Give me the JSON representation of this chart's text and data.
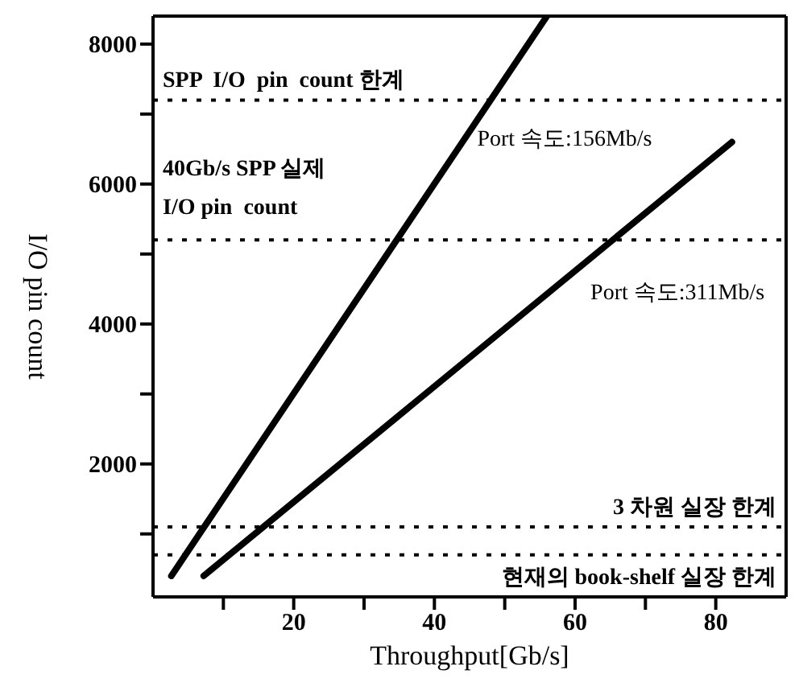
{
  "chart_data": {
    "type": "line",
    "xlabel": "Throughput[Gb/s]",
    "ylabel": "I/O pin count",
    "xlim": [
      0,
      90
    ],
    "xticks": [
      {
        "value": 10,
        "label": null
      },
      20,
      {
        "value": 30,
        "label": null
      },
      40,
      {
        "value": 50,
        "label": null
      },
      60,
      {
        "value": 70,
        "label": null
      },
      80
    ],
    "ylim": [
      100,
      8400
    ],
    "yticks": [
      {
        "value": 1000,
        "label": null
      },
      2000,
      {
        "value": 3000,
        "label": null
      },
      4000,
      {
        "value": 5000,
        "label": null
      },
      6000,
      {
        "value": 7000,
        "label": null
      },
      8000
    ],
    "series": [
      {
        "name": "Port 속도:156Mb/s",
        "color": "#000000",
        "x": [
          2.6,
          56
        ],
        "values": [
          400,
          8400
        ]
      },
      {
        "name": "Port 속도:311Mb/s",
        "color": "#000000",
        "x": [
          7.2,
          82.3
        ],
        "values": [
          400,
          6600
        ]
      }
    ],
    "ref_lines": [
      {
        "axis": "y",
        "value": 7200,
        "label": "SPP  I/O  pin  count 한계",
        "color": "#000000",
        "line_style": "dotted"
      },
      {
        "axis": "y",
        "value": 5200,
        "label": "40Gb/s SPP 실제\nI/O pin  count",
        "color": "#000000",
        "line_style": "dotted"
      },
      {
        "axis": "y",
        "value": 1100,
        "label": "3 차원 실장 한계",
        "color": "#000000",
        "line_style": "dotted"
      },
      {
        "axis": "y",
        "value": 700,
        "label": "현재의 book-shelf 실장 한계",
        "color": "#000000",
        "line_style": "dotted"
      }
    ],
    "grid": false
  }
}
